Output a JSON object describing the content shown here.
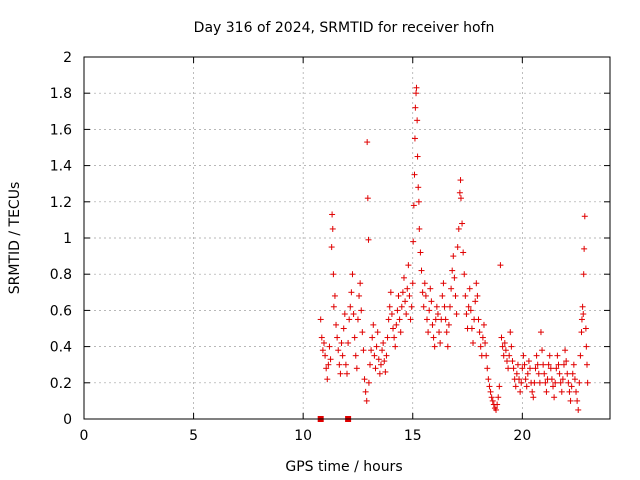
{
  "chart_data": {
    "type": "scatter",
    "title": "Day 316 of 2024, SRMTID for receiver hofn",
    "xlabel": "GPS time / hours",
    "ylabel": "SRMTID / TECUs",
    "xlim": [
      0,
      24
    ],
    "ylim": [
      0,
      2
    ],
    "x_ticks": [
      "0",
      "5",
      "10",
      "15",
      "20"
    ],
    "x_tick_values": [
      0,
      5,
      10,
      15,
      20
    ],
    "y_ticks": [
      "0",
      "0.2",
      "0.4",
      "0.6",
      "0.8",
      "1",
      "1.2",
      "1.4",
      "1.6",
      "1.8",
      "2"
    ],
    "y_tick_values": [
      0,
      0.2,
      0.4,
      0.6,
      0.8,
      1.0,
      1.2,
      1.4,
      1.6,
      1.8,
      2.0
    ],
    "grid": true,
    "marker": "+",
    "color": "#e00000",
    "square_points": [
      [
        10.8,
        0.0
      ],
      [
        12.05,
        0.0
      ]
    ],
    "series": [
      {
        "name": "SRMTID",
        "points": [
          [
            10.8,
            0.55
          ],
          [
            10.85,
            0.45
          ],
          [
            10.9,
            0.38
          ],
          [
            10.95,
            0.42
          ],
          [
            11.0,
            0.35
          ],
          [
            11.05,
            0.28
          ],
          [
            11.1,
            0.22
          ],
          [
            11.15,
            0.3
          ],
          [
            11.2,
            0.4
          ],
          [
            11.25,
            0.33
          ],
          [
            11.3,
            0.95
          ],
          [
            11.32,
            1.13
          ],
          [
            11.35,
            1.05
          ],
          [
            11.38,
            0.8
          ],
          [
            11.4,
            0.62
          ],
          [
            11.45,
            0.68
          ],
          [
            11.5,
            0.52
          ],
          [
            11.55,
            0.45
          ],
          [
            11.6,
            0.38
          ],
          [
            11.65,
            0.3
          ],
          [
            11.7,
            0.25
          ],
          [
            11.75,
            0.42
          ],
          [
            11.8,
            0.35
          ],
          [
            11.85,
            0.5
          ],
          [
            11.9,
            0.58
          ],
          [
            11.95,
            0.3
          ],
          [
            12.0,
            0.25
          ],
          [
            12.05,
            0.42
          ],
          [
            12.1,
            0.55
          ],
          [
            12.15,
            0.62
          ],
          [
            12.2,
            0.7
          ],
          [
            12.25,
            0.8
          ],
          [
            12.3,
            0.58
          ],
          [
            12.35,
            0.45
          ],
          [
            12.4,
            0.35
          ],
          [
            12.45,
            0.28
          ],
          [
            12.5,
            0.55
          ],
          [
            12.55,
            0.68
          ],
          [
            12.6,
            0.75
          ],
          [
            12.65,
            0.6
          ],
          [
            12.7,
            0.48
          ],
          [
            12.75,
            0.38
          ],
          [
            12.8,
            0.22
          ],
          [
            12.85,
            0.15
          ],
          [
            12.9,
            0.1
          ],
          [
            12.92,
            1.53
          ],
          [
            12.95,
            1.22
          ],
          [
            12.98,
            0.99
          ],
          [
            13.0,
            0.2
          ],
          [
            13.05,
            0.3
          ],
          [
            13.1,
            0.38
          ],
          [
            13.15,
            0.45
          ],
          [
            13.2,
            0.52
          ],
          [
            13.25,
            0.35
          ],
          [
            13.3,
            0.28
          ],
          [
            13.35,
            0.4
          ],
          [
            13.4,
            0.48
          ],
          [
            13.45,
            0.33
          ],
          [
            13.5,
            0.25
          ],
          [
            13.55,
            0.3
          ],
          [
            13.6,
            0.38
          ],
          [
            13.65,
            0.42
          ],
          [
            13.7,
            0.32
          ],
          [
            13.75,
            0.26
          ],
          [
            13.8,
            0.35
          ],
          [
            13.85,
            0.45
          ],
          [
            13.9,
            0.55
          ],
          [
            13.95,
            0.62
          ],
          [
            14.0,
            0.7
          ],
          [
            14.05,
            0.58
          ],
          [
            14.1,
            0.5
          ],
          [
            14.15,
            0.45
          ],
          [
            14.2,
            0.4
          ],
          [
            14.25,
            0.52
          ],
          [
            14.3,
            0.6
          ],
          [
            14.35,
            0.68
          ],
          [
            14.4,
            0.55
          ],
          [
            14.45,
            0.48
          ],
          [
            14.5,
            0.62
          ],
          [
            14.55,
            0.7
          ],
          [
            14.6,
            0.78
          ],
          [
            14.65,
            0.65
          ],
          [
            14.7,
            0.58
          ],
          [
            14.75,
            0.72
          ],
          [
            14.8,
            0.85
          ],
          [
            14.85,
            0.68
          ],
          [
            14.9,
            0.55
          ],
          [
            14.95,
            0.62
          ],
          [
            15.0,
            0.75
          ],
          [
            15.02,
            0.98
          ],
          [
            15.05,
            1.18
          ],
          [
            15.08,
            1.35
          ],
          [
            15.1,
            1.55
          ],
          [
            15.12,
            1.72
          ],
          [
            15.15,
            1.8
          ],
          [
            15.17,
            1.83
          ],
          [
            15.2,
            1.65
          ],
          [
            15.22,
            1.45
          ],
          [
            15.25,
            1.28
          ],
          [
            15.28,
            1.2
          ],
          [
            15.3,
            1.05
          ],
          [
            15.35,
            0.92
          ],
          [
            15.4,
            0.82
          ],
          [
            15.45,
            0.7
          ],
          [
            15.5,
            0.62
          ],
          [
            15.55,
            0.75
          ],
          [
            15.6,
            0.68
          ],
          [
            15.65,
            0.55
          ],
          [
            15.7,
            0.48
          ],
          [
            15.75,
            0.6
          ],
          [
            15.8,
            0.72
          ],
          [
            15.85,
            0.65
          ],
          [
            15.9,
            0.52
          ],
          [
            15.95,
            0.45
          ],
          [
            16.0,
            0.4
          ],
          [
            16.05,
            0.55
          ],
          [
            16.1,
            0.62
          ],
          [
            16.15,
            0.58
          ],
          [
            16.2,
            0.48
          ],
          [
            16.25,
            0.42
          ],
          [
            16.3,
            0.55
          ],
          [
            16.35,
            0.68
          ],
          [
            16.4,
            0.75
          ],
          [
            16.45,
            0.62
          ],
          [
            16.5,
            0.55
          ],
          [
            16.55,
            0.48
          ],
          [
            16.6,
            0.4
          ],
          [
            16.65,
            0.52
          ],
          [
            16.7,
            0.62
          ],
          [
            16.75,
            0.72
          ],
          [
            16.8,
            0.82
          ],
          [
            16.85,
            0.9
          ],
          [
            16.9,
            0.78
          ],
          [
            16.95,
            0.68
          ],
          [
            17.0,
            0.58
          ],
          [
            17.05,
            0.95
          ],
          [
            17.1,
            1.05
          ],
          [
            17.15,
            1.25
          ],
          [
            17.18,
            1.32
          ],
          [
            17.2,
            1.22
          ],
          [
            17.25,
            1.08
          ],
          [
            17.3,
            0.92
          ],
          [
            17.35,
            0.8
          ],
          [
            17.4,
            0.68
          ],
          [
            17.45,
            0.58
          ],
          [
            17.5,
            0.5
          ],
          [
            17.55,
            0.62
          ],
          [
            17.6,
            0.72
          ],
          [
            17.65,
            0.6
          ],
          [
            17.7,
            0.5
          ],
          [
            17.75,
            0.42
          ],
          [
            17.8,
            0.55
          ],
          [
            17.85,
            0.65
          ],
          [
            17.9,
            0.75
          ],
          [
            17.95,
            0.68
          ],
          [
            18.0,
            0.55
          ],
          [
            18.05,
            0.48
          ],
          [
            18.1,
            0.4
          ],
          [
            18.15,
            0.35
          ],
          [
            18.2,
            0.45
          ],
          [
            18.25,
            0.52
          ],
          [
            18.3,
            0.42
          ],
          [
            18.35,
            0.35
          ],
          [
            18.4,
            0.28
          ],
          [
            18.45,
            0.22
          ],
          [
            18.5,
            0.18
          ],
          [
            18.55,
            0.15
          ],
          [
            18.6,
            0.12
          ],
          [
            18.65,
            0.1
          ],
          [
            18.7,
            0.08
          ],
          [
            18.75,
            0.06
          ],
          [
            18.8,
            0.05
          ],
          [
            18.85,
            0.08
          ],
          [
            18.9,
            0.12
          ],
          [
            18.95,
            0.18
          ],
          [
            19.0,
            0.85
          ],
          [
            19.05,
            0.45
          ],
          [
            19.1,
            0.4
          ],
          [
            19.15,
            0.35
          ],
          [
            19.2,
            0.42
          ],
          [
            19.25,
            0.38
          ],
          [
            19.3,
            0.32
          ],
          [
            19.35,
            0.28
          ],
          [
            19.4,
            0.35
          ],
          [
            19.45,
            0.48
          ],
          [
            19.5,
            0.4
          ],
          [
            19.55,
            0.32
          ],
          [
            19.6,
            0.28
          ],
          [
            19.65,
            0.22
          ],
          [
            19.7,
            0.18
          ],
          [
            19.75,
            0.25
          ],
          [
            19.8,
            0.3
          ],
          [
            19.85,
            0.22
          ],
          [
            19.9,
            0.15
          ],
          [
            19.95,
            0.2
          ],
          [
            20.0,
            0.28
          ],
          [
            20.05,
            0.35
          ],
          [
            20.1,
            0.3
          ],
          [
            20.15,
            0.22
          ],
          [
            20.2,
            0.18
          ],
          [
            20.25,
            0.25
          ],
          [
            20.3,
            0.32
          ],
          [
            20.35,
            0.28
          ],
          [
            20.4,
            0.2
          ],
          [
            20.45,
            0.15
          ],
          [
            20.5,
            0.12
          ],
          [
            20.55,
            0.2
          ],
          [
            20.6,
            0.28
          ],
          [
            20.65,
            0.35
          ],
          [
            20.7,
            0.3
          ],
          [
            20.75,
            0.25
          ],
          [
            20.8,
            0.2
          ],
          [
            20.85,
            0.48
          ],
          [
            20.9,
            0.38
          ],
          [
            20.95,
            0.3
          ],
          [
            21.0,
            0.25
          ],
          [
            21.05,
            0.2
          ],
          [
            21.1,
            0.15
          ],
          [
            21.15,
            0.22
          ],
          [
            21.2,
            0.3
          ],
          [
            21.25,
            0.35
          ],
          [
            21.3,
            0.28
          ],
          [
            21.35,
            0.22
          ],
          [
            21.4,
            0.18
          ],
          [
            21.45,
            0.12
          ],
          [
            21.5,
            0.2
          ],
          [
            21.55,
            0.28
          ],
          [
            21.6,
            0.35
          ],
          [
            21.65,
            0.3
          ],
          [
            21.7,
            0.25
          ],
          [
            21.75,
            0.2
          ],
          [
            21.8,
            0.15
          ],
          [
            21.85,
            0.22
          ],
          [
            21.9,
            0.3
          ],
          [
            21.95,
            0.38
          ],
          [
            22.0,
            0.32
          ],
          [
            22.05,
            0.25
          ],
          [
            22.1,
            0.2
          ],
          [
            22.15,
            0.15
          ],
          [
            22.2,
            0.1
          ],
          [
            22.25,
            0.18
          ],
          [
            22.3,
            0.25
          ],
          [
            22.35,
            0.3
          ],
          [
            22.4,
            0.22
          ],
          [
            22.45,
            0.15
          ],
          [
            22.5,
            0.1
          ],
          [
            22.55,
            0.05
          ],
          [
            22.6,
            0.2
          ],
          [
            22.65,
            0.35
          ],
          [
            22.7,
            0.48
          ],
          [
            22.72,
            0.55
          ],
          [
            22.75,
            0.62
          ],
          [
            22.78,
            0.58
          ],
          [
            22.8,
            0.8
          ],
          [
            22.82,
            0.94
          ],
          [
            22.85,
            1.12
          ],
          [
            22.9,
            0.5
          ],
          [
            22.92,
            0.4
          ],
          [
            22.95,
            0.3
          ],
          [
            22.98,
            0.2
          ]
        ]
      }
    ]
  }
}
